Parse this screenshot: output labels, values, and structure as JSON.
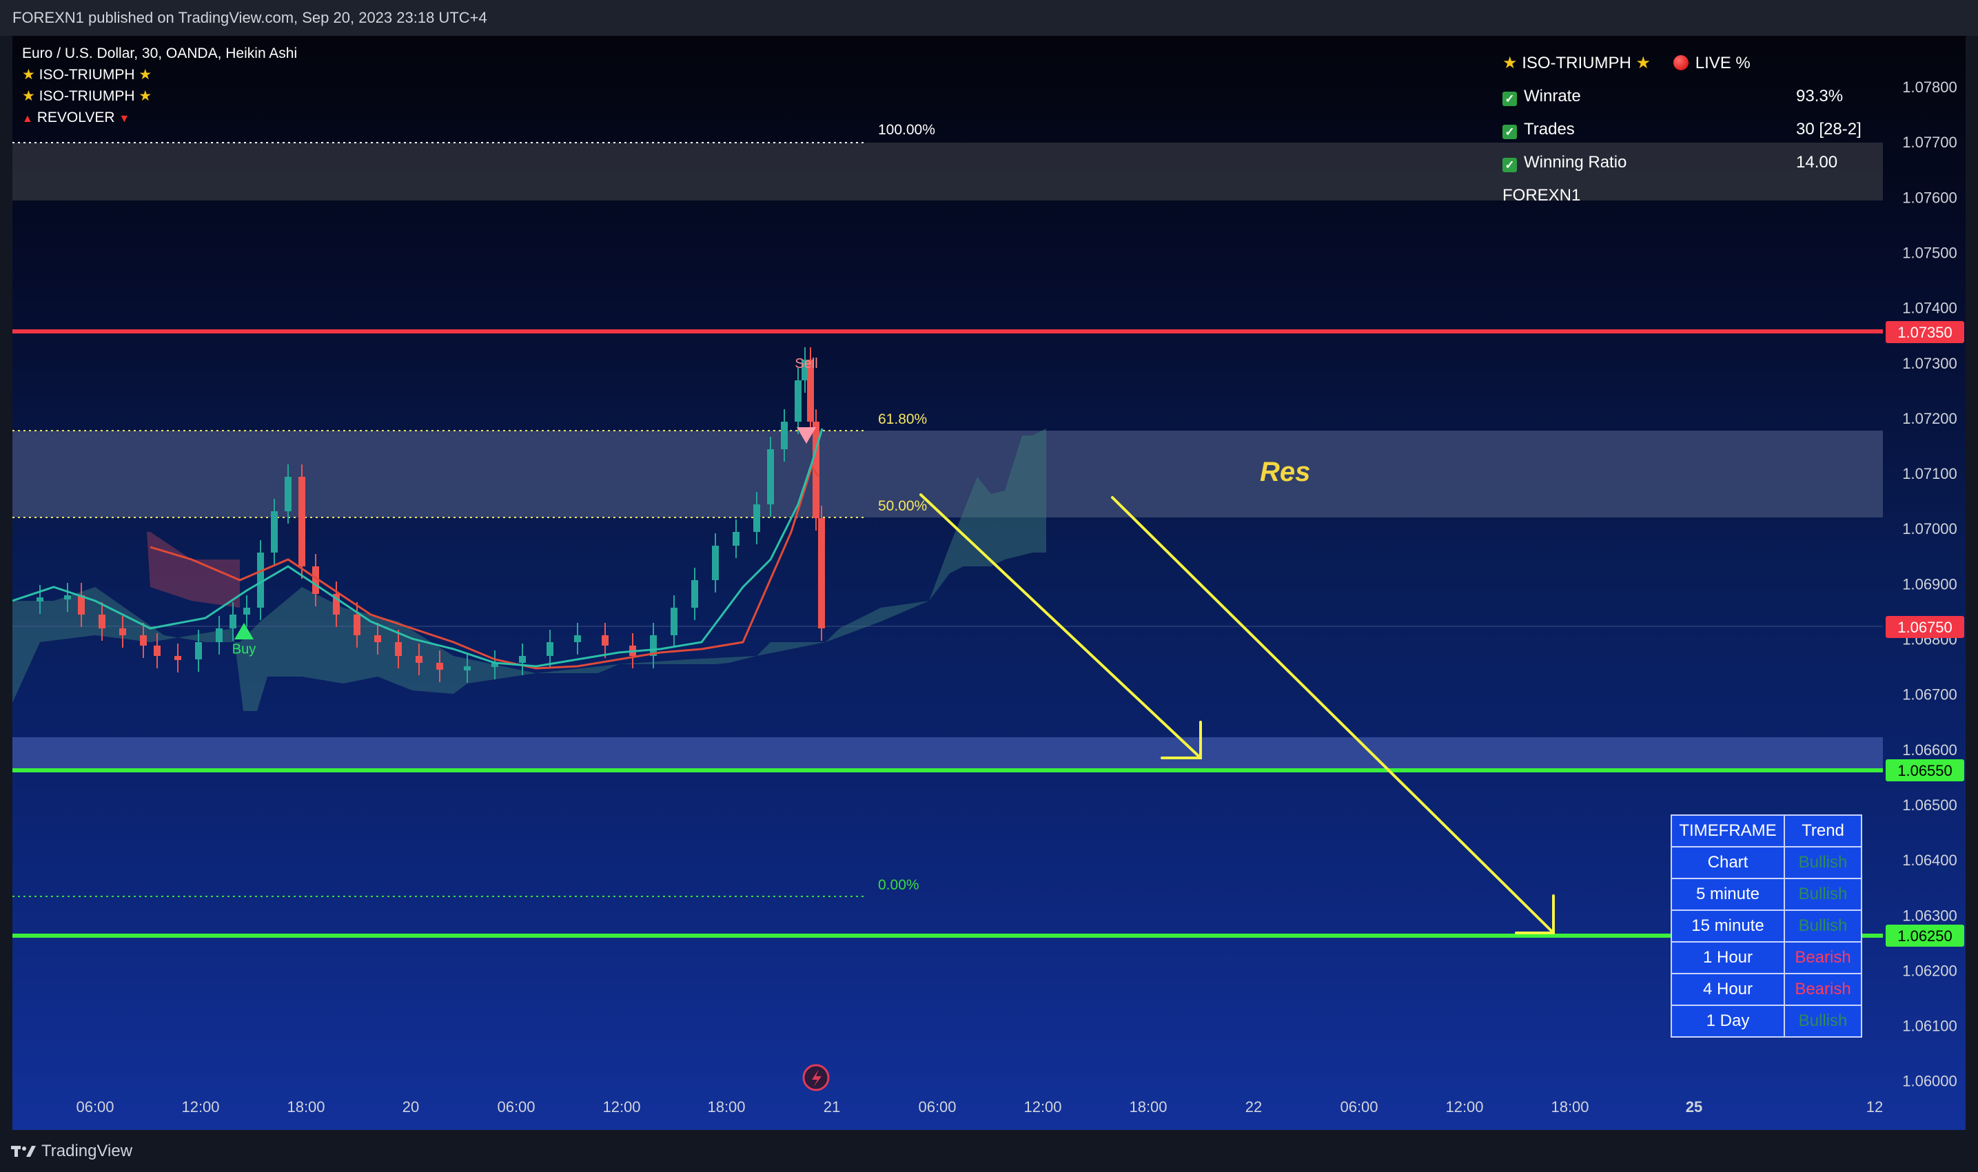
{
  "published_line": "FOREXN1 published on TradingView.com, Sep 20, 2023 23:18 UTC+4",
  "legend": {
    "symbol": "Euro / U.S. Dollar, 30, OANDA, Heikin Ashi",
    "indicator_1": "ISO-TRIUMPH",
    "indicator_2": "ISO-TRIUMPH",
    "indicator_3": "REVOLVER"
  },
  "stats_panel": {
    "title": "ISO-TRIUMPH",
    "live_label": "LIVE %",
    "rows": [
      {
        "label": "Winrate",
        "value": "93.3%"
      },
      {
        "label": "Trades",
        "value": "30 [28-2]"
      },
      {
        "label": "Winning Ratio",
        "value": "14.00"
      }
    ],
    "author": "FOREXN1"
  },
  "fib_levels": [
    {
      "label": "100.00%",
      "price": 1.0769,
      "color": "#ffffff"
    },
    {
      "label": "61.80%",
      "price": 1.0717,
      "color": "#f5e663"
    },
    {
      "label": "50.00%",
      "price": 1.0701,
      "color": "#f5e663"
    },
    {
      "label": "0.00%",
      "price": 1.0633,
      "color": "#3ddc3d"
    }
  ],
  "horizontal_lines": [
    {
      "price": 1.0735,
      "label": "1.07350",
      "color": "#f23645"
    },
    {
      "price": 1.0655,
      "label": "1.06550",
      "color": "#3cf03c"
    },
    {
      "price": 1.0625,
      "label": "1.06250",
      "color": "#3cf03c"
    }
  ],
  "current_price": {
    "price": 1.0675,
    "label": "1.06750",
    "color": "#f23645"
  },
  "price_axis": {
    "ticks": [
      "1.07800",
      "1.07700",
      "1.07600",
      "1.07500",
      "1.07400",
      "1.07300",
      "1.07200",
      "1.07100",
      "1.07000",
      "1.06900",
      "1.06800",
      "1.06700",
      "1.06600",
      "1.06500",
      "1.06400",
      "1.06300",
      "1.06200",
      "1.06100",
      "1.06000"
    ]
  },
  "time_axis": {
    "ticks": [
      "06:00",
      "12:00",
      "18:00",
      "20",
      "06:00",
      "12:00",
      "18:00",
      "21",
      "06:00",
      "12:00",
      "18:00",
      "22",
      "06:00",
      "12:00",
      "18:00",
      "25",
      "12"
    ]
  },
  "annotations": {
    "res_label": "Res",
    "buy_label": "Buy",
    "sell_label": "Sell"
  },
  "timeframe_table": {
    "headers": [
      "TIMEFRAME",
      "Trend"
    ],
    "rows": [
      {
        "timeframe": "Chart",
        "trend": "Bullish"
      },
      {
        "timeframe": "5 minute",
        "trend": "Bullish"
      },
      {
        "timeframe": "15 minute",
        "trend": "Bullish"
      },
      {
        "timeframe": "1 Hour",
        "trend": "Bearish"
      },
      {
        "timeframe": "4 Hour",
        "trend": "Bearish"
      },
      {
        "timeframe": "1 Day",
        "trend": "Bullish"
      }
    ]
  },
  "footer": {
    "brand": "TradingView"
  },
  "colors": {
    "bull_candle": "#26a69a",
    "bear_candle": "#ef5350",
    "arrow": "#f5f542",
    "accent_red": "#f23645",
    "accent_green": "#3cf03c"
  }
}
